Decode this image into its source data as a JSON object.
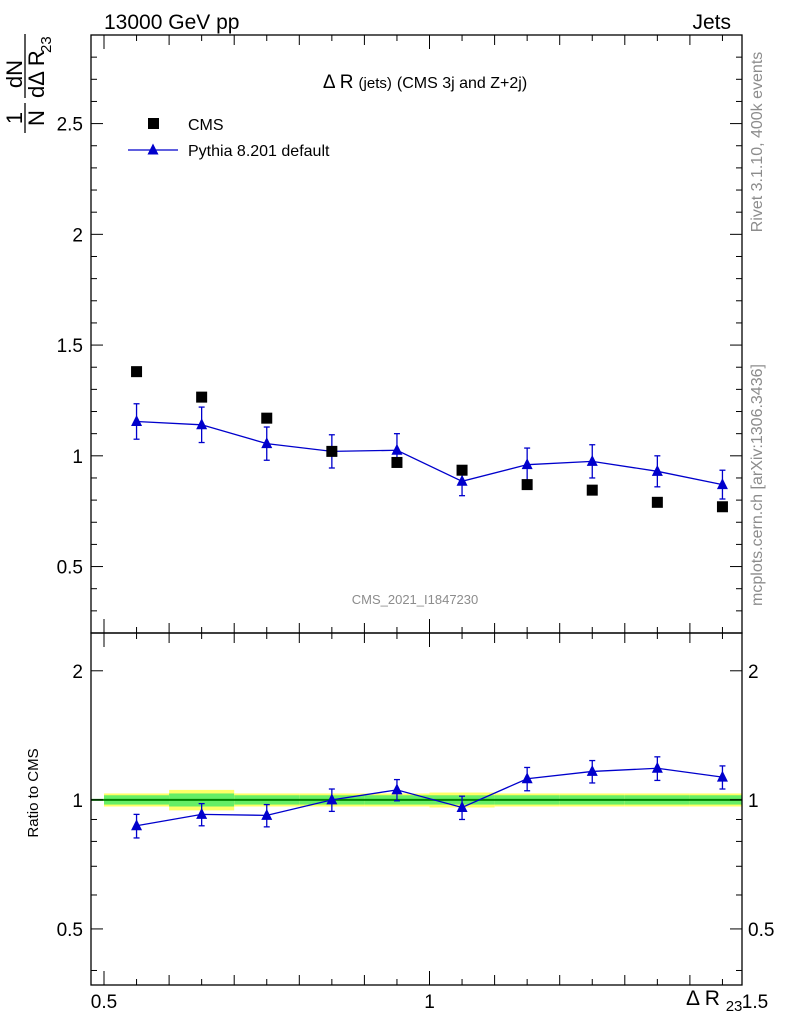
{
  "header": {
    "energy": "13000 GeV pp",
    "process": "Jets"
  },
  "side_labels": {
    "rivet": "Rivet 3.1.10,  400k events",
    "mcplots": "mcplots.cern.ch [arXiv:1306.3436]"
  },
  "watermark": "CMS_2021_I1847230",
  "chart_data": [
    {
      "type": "scatter",
      "panel": "main",
      "title": "Δ R (jets) (CMS 3j and Z+2j)",
      "title_main": "Δ R",
      "title_small": "(jets)",
      "title_rest": "(CMS 3j and Z+2j)",
      "ylabel": "1/N dN/dΔ R23",
      "ylabel_parts": {
        "num1": "1",
        "den1": "N",
        "num2": "dN",
        "den2": "dΔ R",
        "sub": "23"
      },
      "xlim": [
        0.5,
        1.5
      ],
      "ylim": [
        0.2,
        2.9
      ],
      "yticks": [
        0.5,
        1,
        1.5,
        2,
        2.5
      ],
      "ytick_labels": [
        "0.5",
        "1",
        "1.5",
        "2",
        "2.5"
      ],
      "legend_position": "top-left",
      "series": [
        {
          "name": "CMS",
          "marker": "square",
          "color": "#000000",
          "x": [
            0.55,
            0.65,
            0.75,
            0.85,
            0.95,
            1.05,
            1.15,
            1.25,
            1.35,
            1.45
          ],
          "y": [
            1.38,
            1.265,
            1.17,
            1.02,
            0.97,
            0.935,
            0.87,
            0.845,
            0.79,
            0.77
          ]
        },
        {
          "name": "Pythia 8.201 default",
          "marker": "triangle",
          "color": "#0000cc",
          "x": [
            0.55,
            0.65,
            0.75,
            0.85,
            0.95,
            1.05,
            1.15,
            1.25,
            1.35,
            1.45
          ],
          "y": [
            1.155,
            1.14,
            1.055,
            1.02,
            1.025,
            0.885,
            0.96,
            0.975,
            0.93,
            0.87
          ],
          "yerr": [
            0.08,
            0.08,
            0.075,
            0.075,
            0.075,
            0.065,
            0.075,
            0.075,
            0.07,
            0.065
          ]
        }
      ]
    },
    {
      "type": "line",
      "panel": "ratio",
      "ylabel": "Ratio to CMS",
      "xlabel": "Δ R23",
      "xlabel_main": "Δ R",
      "xlabel_sub": "23",
      "xlim": [
        0.5,
        1.5
      ],
      "ylim": [
        0.37,
        2.45
      ],
      "yticks": [
        0.5,
        1,
        2
      ],
      "ytick_labels": [
        "0.5",
        "1",
        "2"
      ],
      "xticks": [
        0.5,
        1,
        1.5
      ],
      "xtick_labels": [
        "0.5",
        "1",
        "1.5"
      ],
      "scale": "log",
      "reference": {
        "value": 1.0,
        "color": "#008000",
        "band_inner_color": "#66ee66",
        "band_outer_color": "#ffff66",
        "band_x": [
          0.5,
          0.6,
          0.7,
          0.8,
          0.9,
          1.0,
          1.1,
          1.2,
          1.3,
          1.4,
          1.5
        ],
        "band_inner": [
          0.025,
          0.035,
          0.025,
          0.025,
          0.025,
          0.025,
          0.025,
          0.025,
          0.025,
          0.025
        ],
        "band_outer": [
          0.035,
          0.055,
          0.035,
          0.035,
          0.035,
          0.04,
          0.035,
          0.035,
          0.035,
          0.035
        ]
      },
      "series": [
        {
          "name": "Pythia 8.201 default",
          "marker": "triangle",
          "color": "#0000cc",
          "x": [
            0.55,
            0.65,
            0.75,
            0.85,
            0.95,
            1.05,
            1.15,
            1.25,
            1.35,
            1.45
          ],
          "y": [
            0.87,
            0.925,
            0.92,
            1.0,
            1.055,
            0.96,
            1.12,
            1.165,
            1.185,
            1.13
          ],
          "yerr": [
            0.055,
            0.055,
            0.055,
            0.06,
            0.06,
            0.06,
            0.07,
            0.07,
            0.075,
            0.07
          ]
        }
      ]
    }
  ]
}
